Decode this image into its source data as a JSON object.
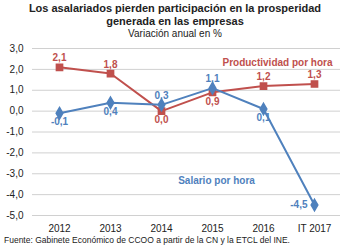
{
  "chart_data": {
    "type": "line",
    "title": "Los asalariados pierden participación en la prosperidad generada en las empresas",
    "subtitle": "Variación anual en %",
    "caption": "Fuente: Gabinete Económico de CCOO a partir de la CN y la ETCL del INE.",
    "categories": [
      "2012",
      "2013",
      "2014",
      "2015",
      "2016",
      "IT 2017"
    ],
    "series": [
      {
        "name": "Productividad por hora",
        "color": "#c0504d",
        "marker": "square",
        "values": [
          2.1,
          1.8,
          0.0,
          0.9,
          1.2,
          1.3
        ],
        "value_labels": [
          "2,1",
          "1,8",
          "0,0",
          "0,9",
          "1,2",
          "1,3"
        ]
      },
      {
        "name": "Salario por hora",
        "color": "#4f81bd",
        "marker": "diamond",
        "values": [
          -0.1,
          0.4,
          0.3,
          1.1,
          0.1,
          -4.5
        ],
        "value_labels": [
          "-0,1",
          "0,4",
          "0,3",
          "1,1",
          "0,1",
          "-4,5"
        ]
      }
    ],
    "ylim": [
      -5,
      3
    ],
    "yticks": [
      {
        "value": -5,
        "label": "-5,0"
      },
      {
        "value": -4,
        "label": "-4,0"
      },
      {
        "value": -3,
        "label": "-3,0"
      },
      {
        "value": -2,
        "label": "-2,0"
      },
      {
        "value": -1,
        "label": "-1,0"
      },
      {
        "value": 0,
        "label": "0,0"
      },
      {
        "value": 1,
        "label": "1,0"
      },
      {
        "value": 2,
        "label": "2,0"
      },
      {
        "value": 3,
        "label": "3,0"
      }
    ],
    "grid": true,
    "data_labels": true
  }
}
